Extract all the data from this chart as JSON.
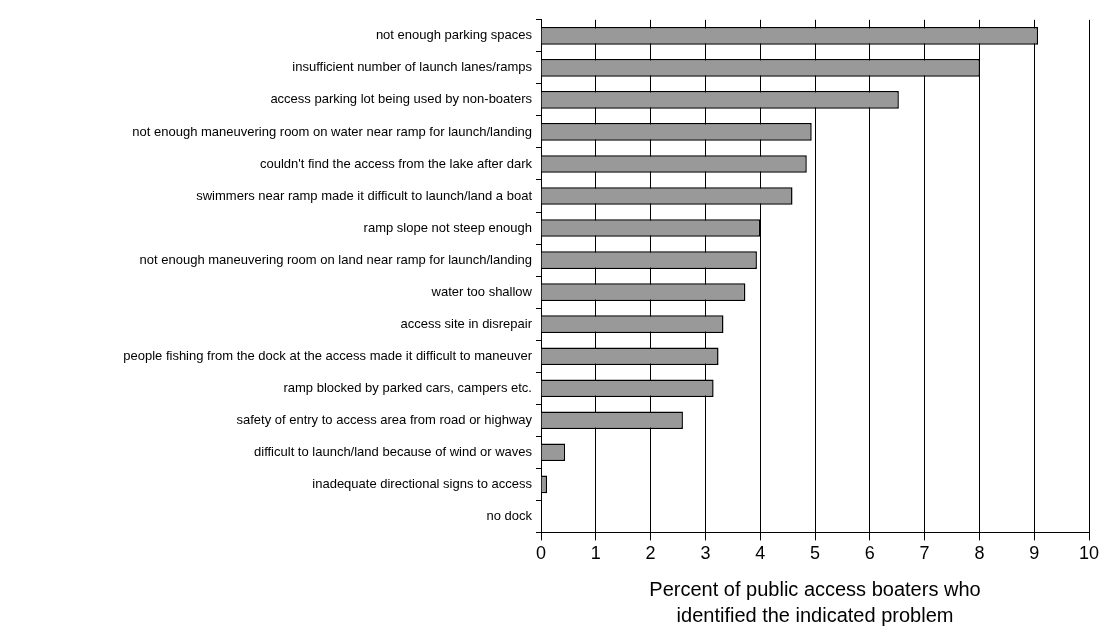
{
  "chart_data": {
    "type": "bar",
    "orientation": "horizontal",
    "xlabel": "Percent of public access boaters who identified the indicated problem",
    "categories": [
      "not enough parking spaces",
      "insufficient number of launch lanes/ramps",
      "access parking lot being used by non-boaters",
      "not enough maneuvering room on water near ramp for launch/landing",
      "couldn't find the access from the lake after dark",
      "swimmers near ramp made it difficult to launch/land a boat",
      "ramp slope not steep enough",
      "not enough maneuvering room on land near ramp for launch/landing",
      "water too shallow",
      "access site in disrepair",
      "people fishing from the dock at the access made it difficult to maneuver",
      "ramp blocked by parked cars, campers etc.",
      "safety of entry to access area from road or highway",
      "difficult to launch/land because of wind or waves",
      "inadequate directional signs to access",
      "no dock"
    ],
    "values": [
      9.07,
      8.01,
      6.53,
      4.94,
      4.85,
      4.59,
      4.0,
      3.94,
      3.73,
      3.33,
      3.24,
      3.15,
      2.59,
      0.44,
      0.11,
      0
    ],
    "color": "#999999",
    "xlim": [
      0,
      10
    ],
    "xticks": [
      0,
      1,
      2,
      3,
      4,
      5,
      6,
      7,
      8,
      9,
      10
    ],
    "grid": "x",
    "legend": false
  }
}
